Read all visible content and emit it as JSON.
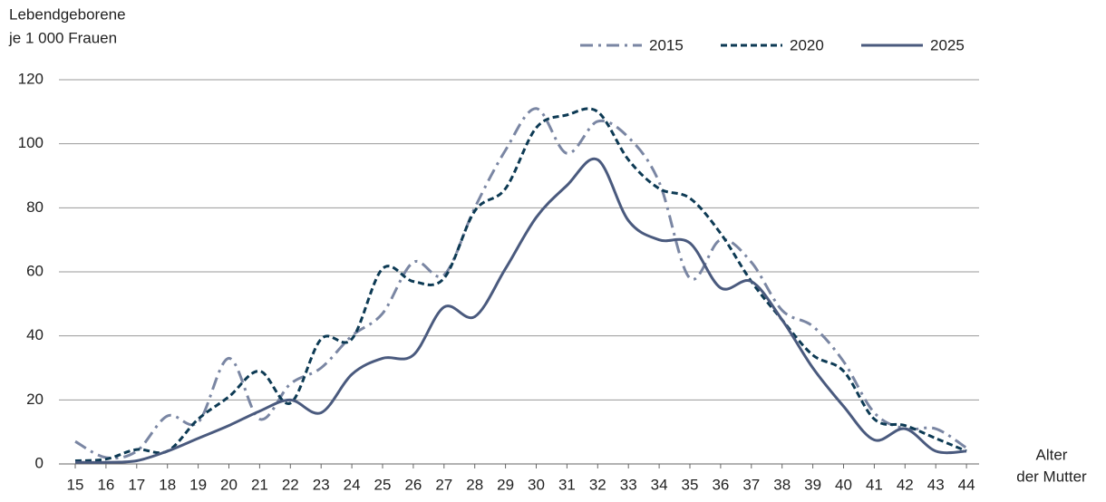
{
  "chart_data": {
    "type": "line",
    "y_label": [
      "Lebendgeborene",
      "je 1 000 Frauen"
    ],
    "x_label": [
      "Alter",
      "der Mutter"
    ],
    "categories": [
      "15",
      "16",
      "17",
      "18",
      "19",
      "20",
      "21",
      "22",
      "23",
      "24",
      "25",
      "26",
      "27",
      "28",
      "29",
      "30",
      "31",
      "32",
      "33",
      "34",
      "35",
      "36",
      "37",
      "38",
      "39",
      "40",
      "41",
      "42",
      "43",
      "44"
    ],
    "series": [
      {
        "name": "2015",
        "color": "#7a86a3",
        "line_style": "dashdot",
        "values": [
          7,
          2,
          4,
          15,
          13,
          33,
          14,
          25,
          30,
          40,
          47,
          63,
          59,
          80,
          98,
          111,
          97,
          107,
          102,
          88,
          58,
          70,
          63,
          48,
          43,
          32,
          16,
          11,
          11,
          5
        ]
      },
      {
        "name": "2020",
        "color": "#0d3a54",
        "line_style": "dashed",
        "values": [
          1,
          1.5,
          4.5,
          4,
          14,
          21,
          29,
          19,
          39,
          39,
          61,
          57,
          58,
          79,
          86,
          105,
          109,
          110,
          95,
          86,
          83,
          72,
          57,
          45,
          34,
          29,
          14,
          12,
          8,
          4
        ]
      },
      {
        "name": "2025",
        "color": "#4a5a7e",
        "line_style": "solid",
        "values": [
          0.5,
          0.5,
          1,
          4,
          8,
          12,
          16.5,
          20,
          16,
          28,
          33,
          34,
          49,
          46,
          61,
          77,
          87,
          95,
          76,
          70,
          69,
          55,
          57,
          45,
          30,
          18,
          7.5,
          11,
          4,
          4
        ]
      }
    ],
    "ylim": [
      0,
      120
    ],
    "yticks": [
      0,
      20,
      40,
      60,
      80,
      100,
      120
    ],
    "grid": true,
    "legend": "top-right"
  }
}
